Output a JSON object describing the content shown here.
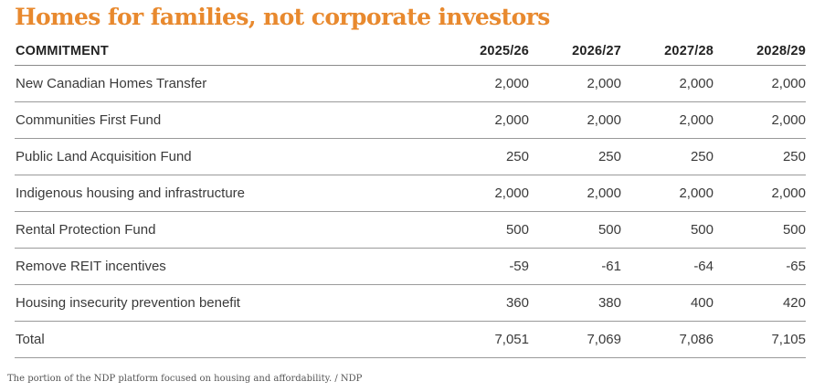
{
  "title": "Homes for families, not corporate investors",
  "table": {
    "headers": [
      "COMMITMENT",
      "2025/26",
      "2026/27",
      "2027/28",
      "2028/29"
    ],
    "rows": [
      {
        "label": "New Canadian Homes Transfer",
        "values": [
          "2,000",
          "2,000",
          "2,000",
          "2,000"
        ]
      },
      {
        "label": "Communities First Fund",
        "values": [
          "2,000",
          "2,000",
          "2,000",
          "2,000"
        ]
      },
      {
        "label": "Public Land Acquisition Fund",
        "values": [
          "250",
          "250",
          "250",
          "250"
        ]
      },
      {
        "label": "Indigenous housing and infrastructure",
        "values": [
          "2,000",
          "2,000",
          "2,000",
          "2,000"
        ]
      },
      {
        "label": "Rental Protection Fund",
        "values": [
          "500",
          "500",
          "500",
          "500"
        ]
      },
      {
        "label": "Remove REIT incentives",
        "values": [
          "-59",
          "-61",
          "-64",
          "-65"
        ]
      },
      {
        "label": "Housing insecurity prevention benefit",
        "values": [
          "360",
          "380",
          "400",
          "420"
        ]
      },
      {
        "label": "Total",
        "values": [
          "7,051",
          "7,069",
          "7,086",
          "7,105"
        ]
      }
    ]
  },
  "caption": "The portion of the NDP platform focused on housing and affordability. / NDP",
  "colors": {
    "title": "#e8892e",
    "rule": "#9a9a9a"
  }
}
